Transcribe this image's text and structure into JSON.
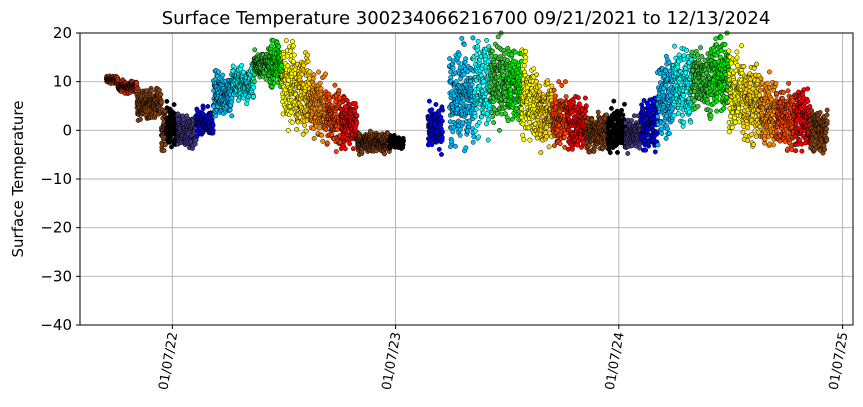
{
  "chart_data": {
    "type": "scatter",
    "title": "Surface Temperature 300234066216700  09/21/2021 to 12/13/2024",
    "ylabel": "Surface Temperature",
    "xlabel": "",
    "ylim": [
      -40,
      20
    ],
    "xlim": [
      "2021-08-09",
      "2025-01-24"
    ],
    "yticks": [
      -40,
      -30,
      -20,
      -10,
      0,
      10,
      20
    ],
    "xticks": [
      {
        "date": "2022-01-07",
        "label": "01/07/22"
      },
      {
        "date": "2023-01-07",
        "label": "01/07/23"
      },
      {
        "date": "2024-01-07",
        "label": "01/07/24"
      },
      {
        "date": "2025-01-07",
        "label": "01/07/25"
      }
    ],
    "grid": true,
    "marker_edge_color": "#000000",
    "segments": [
      {
        "start": "2021-09-21",
        "end": "2021-10-10",
        "color": "#e04010",
        "lo": 9.5,
        "hi": 11.3
      },
      {
        "start": "2021-10-10",
        "end": "2021-11-10",
        "color": "#d03010",
        "lo": 7.5,
        "hi": 10.5
      },
      {
        "start": "2021-11-10",
        "end": "2021-12-20",
        "color": "#8b4513",
        "lo": 2,
        "hi": 9
      },
      {
        "start": "2021-12-20",
        "end": "2021-12-28",
        "color": "#8b4513",
        "lo": -5,
        "hi": 5
      },
      {
        "start": "2021-12-28",
        "end": "2022-01-15",
        "color": "#000000",
        "lo": -5,
        "hi": 6
      },
      {
        "start": "2022-01-15",
        "end": "2022-02-15",
        "color": "#483d8b",
        "lo": -5,
        "hi": 4
      },
      {
        "start": "2022-02-15",
        "end": "2022-03-15",
        "color": "#0000ff",
        "lo": -2,
        "hi": 5
      },
      {
        "start": "2022-03-15",
        "end": "2022-04-15",
        "color": "#00bfff",
        "lo": 2,
        "hi": 13
      },
      {
        "start": "2022-04-15",
        "end": "2022-05-20",
        "color": "#00ffff",
        "lo": 5,
        "hi": 14
      },
      {
        "start": "2022-05-20",
        "end": "2022-06-15",
        "color": "#32cd32",
        "lo": 10,
        "hi": 17
      },
      {
        "start": "2022-06-15",
        "end": "2022-07-05",
        "color": "#00ee00",
        "lo": 8,
        "hi": 19
      },
      {
        "start": "2022-07-05",
        "end": "2022-07-28",
        "color": "#ffff00",
        "lo": 0,
        "hi": 20
      },
      {
        "start": "2022-07-28",
        "end": "2022-08-20",
        "color": "#ffd700",
        "lo": -2,
        "hi": 18
      },
      {
        "start": "2022-08-20",
        "end": "2022-09-15",
        "color": "#ff8c00",
        "lo": -3,
        "hi": 12
      },
      {
        "start": "2022-09-15",
        "end": "2022-10-10",
        "color": "#ff4500",
        "lo": -5,
        "hi": 10
      },
      {
        "start": "2022-10-10",
        "end": "2022-11-05",
        "color": "#ff0000",
        "lo": -5,
        "hi": 8
      },
      {
        "start": "2022-11-05",
        "end": "2022-12-28",
        "color": "#8b4513",
        "lo": -5,
        "hi": 0
      },
      {
        "start": "2022-12-28",
        "end": "2023-01-20",
        "color": "#000000",
        "lo": -4,
        "hi": -1
      },
      {
        "start": "2023-03-01",
        "end": "2023-03-25",
        "color": "#0000ff",
        "lo": -5,
        "hi": 6
      },
      {
        "start": "2023-04-05",
        "end": "2023-05-15",
        "color": "#00bfff",
        "lo": -5,
        "hi": 19
      },
      {
        "start": "2023-05-15",
        "end": "2023-06-10",
        "color": "#00ffff",
        "lo": -2,
        "hi": 20
      },
      {
        "start": "2023-06-10",
        "end": "2023-07-10",
        "color": "#32cd32",
        "lo": 0,
        "hi": 20
      },
      {
        "start": "2023-07-10",
        "end": "2023-08-01",
        "color": "#00ee00",
        "lo": 0,
        "hi": 18
      },
      {
        "start": "2023-08-01",
        "end": "2023-08-25",
        "color": "#ffff00",
        "lo": -4,
        "hi": 17
      },
      {
        "start": "2023-08-25",
        "end": "2023-09-20",
        "color": "#ffd700",
        "lo": -5,
        "hi": 13
      },
      {
        "start": "2023-09-20",
        "end": "2023-10-15",
        "color": "#ff4500",
        "lo": -5,
        "hi": 10
      },
      {
        "start": "2023-10-15",
        "end": "2023-11-15",
        "color": "#ff0000",
        "lo": -5,
        "hi": 8
      },
      {
        "start": "2023-11-15",
        "end": "2023-12-20",
        "color": "#8b4513",
        "lo": -5,
        "hi": 4
      },
      {
        "start": "2023-12-20",
        "end": "2024-01-18",
        "color": "#000000",
        "lo": -5,
        "hi": 6
      },
      {
        "start": "2024-01-18",
        "end": "2024-02-12",
        "color": "#483d8b",
        "lo": -5,
        "hi": 3
      },
      {
        "start": "2024-02-12",
        "end": "2024-03-10",
        "color": "#0000ff",
        "lo": -5,
        "hi": 7
      },
      {
        "start": "2024-03-10",
        "end": "2024-04-05",
        "color": "#00bfff",
        "lo": -3,
        "hi": 17
      },
      {
        "start": "2024-04-05",
        "end": "2024-05-05",
        "color": "#00ffff",
        "lo": 0,
        "hi": 18
      },
      {
        "start": "2024-05-05",
        "end": "2024-06-05",
        "color": "#32cd32",
        "lo": 2,
        "hi": 19
      },
      {
        "start": "2024-06-05",
        "end": "2024-07-05",
        "color": "#00ee00",
        "lo": 3,
        "hi": 20
      },
      {
        "start": "2024-07-05",
        "end": "2024-07-28",
        "color": "#ffff00",
        "lo": -3,
        "hi": 19
      },
      {
        "start": "2024-07-28",
        "end": "2024-08-25",
        "color": "#ffd700",
        "lo": -4,
        "hi": 16
      },
      {
        "start": "2024-08-25",
        "end": "2024-09-20",
        "color": "#ff8c00",
        "lo": -5,
        "hi": 12
      },
      {
        "start": "2024-09-20",
        "end": "2024-10-20",
        "color": "#ff4500",
        "lo": -5,
        "hi": 10
      },
      {
        "start": "2024-10-20",
        "end": "2024-11-15",
        "color": "#ff0000",
        "lo": -5,
        "hi": 10
      },
      {
        "start": "2024-11-15",
        "end": "2024-12-13",
        "color": "#8b4513",
        "lo": -5,
        "hi": 5
      }
    ]
  }
}
